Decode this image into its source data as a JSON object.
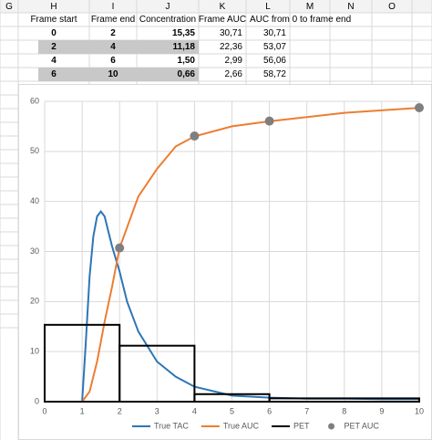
{
  "spreadsheet": {
    "columns": [
      "G",
      "H",
      "I",
      "J",
      "K",
      "L",
      "M",
      "N",
      "O"
    ],
    "table": {
      "header": [
        "Frame start",
        "Frame end",
        "Concentration",
        "Frame AUC",
        "AUC from 0 to frame end"
      ],
      "rows": [
        [
          "0",
          "2",
          "15,35",
          "30,71",
          "30,71"
        ],
        [
          "2",
          "4",
          "11,18",
          "22,36",
          "53,07"
        ],
        [
          "4",
          "6",
          "1,50",
          "2,99",
          "56,06"
        ],
        [
          "6",
          "10",
          "0,66",
          "2,66",
          "58,72"
        ]
      ]
    }
  },
  "chart_data": {
    "type": "line",
    "xlim": [
      0,
      10
    ],
    "xticks": [
      0,
      1,
      2,
      3,
      4,
      5,
      6,
      7,
      8,
      9,
      10
    ],
    "ylim": [
      0,
      60
    ],
    "yticks": [
      0,
      10,
      20,
      30,
      40,
      50,
      60
    ],
    "grid": true,
    "legend": "bottom",
    "series": [
      {
        "name": "True TAC",
        "color": "#2e75b6",
        "x": [
          0,
          1,
          1.1,
          1.2,
          1.3,
          1.4,
          1.5,
          1.6,
          1.7,
          1.8,
          2,
          2.2,
          2.5,
          3,
          3.5,
          4,
          5,
          6,
          7,
          8,
          9,
          10
        ],
        "values": [
          0,
          0,
          12,
          25,
          33,
          37,
          38,
          37,
          34,
          31,
          26,
          20,
          14,
          8,
          5,
          3,
          1.2,
          0.8,
          0.6,
          0.6,
          0.5,
          0.5
        ]
      },
      {
        "name": "True AUC",
        "color": "#ed7d31",
        "x": [
          0,
          1,
          1.2,
          1.4,
          1.5,
          1.6,
          1.8,
          2,
          2.5,
          3,
          3.5,
          4,
          5,
          6,
          8,
          10
        ],
        "values": [
          0,
          0,
          2,
          8,
          12,
          16,
          23,
          30.7,
          41,
          46.5,
          51,
          53,
          55,
          56,
          57.7,
          58.7
        ]
      },
      {
        "name": "PET",
        "color": "#000000",
        "bins": [
          0,
          2,
          4,
          6,
          10
        ],
        "values": [
          15.35,
          11.18,
          1.5,
          0.66
        ]
      },
      {
        "name": "PET AUC",
        "color": "#7f7f7f",
        "x": [
          2,
          4,
          6,
          10
        ],
        "values": [
          30.71,
          53.07,
          56.06,
          58.72
        ]
      }
    ]
  }
}
